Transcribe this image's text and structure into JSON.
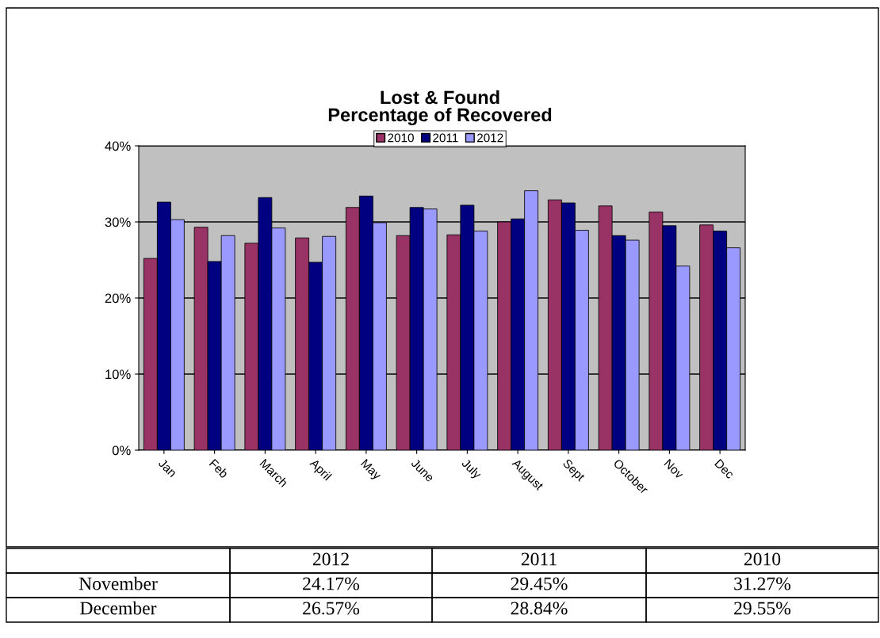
{
  "chart_data": {
    "type": "bar",
    "title": "Lost & Found\nPercentage of Recovered",
    "categories": [
      "Jan",
      "Feb",
      "March",
      "April",
      "May",
      "June",
      "July",
      "August",
      "Sept",
      "October",
      "Nov",
      "Dec"
    ],
    "series": [
      {
        "name": "2010",
        "color": "#993366",
        "values": [
          25.2,
          29.3,
          27.2,
          27.9,
          31.9,
          28.2,
          28.3,
          30.0,
          32.9,
          32.1,
          31.3,
          29.6
        ]
      },
      {
        "name": "2011",
        "color": "#000080",
        "values": [
          32.6,
          24.8,
          33.2,
          24.7,
          33.4,
          31.9,
          32.2,
          30.4,
          32.5,
          28.2,
          29.5,
          28.8
        ]
      },
      {
        "name": "2012",
        "color": "#9999ff",
        "values": [
          30.3,
          28.2,
          29.2,
          28.1,
          29.9,
          31.7,
          28.8,
          34.1,
          28.9,
          27.6,
          24.2,
          26.6
        ]
      }
    ],
    "ylim": [
      0,
      40
    ],
    "yticks": [
      {
        "value": 0,
        "label": "0%"
      },
      {
        "value": 10,
        "label": "10%"
      },
      {
        "value": 20,
        "label": "20%"
      },
      {
        "value": 30,
        "label": "30%"
      },
      {
        "value": 40,
        "label": "40%"
      }
    ],
    "grid": "y",
    "legend": "top",
    "annotations": [
      "2012",
      "2011",
      "2010",
      "November",
      "24.17%",
      "29.45%",
      "31.27%",
      "December",
      "26.57%",
      "28.84%",
      "29.55%"
    ]
  }
}
